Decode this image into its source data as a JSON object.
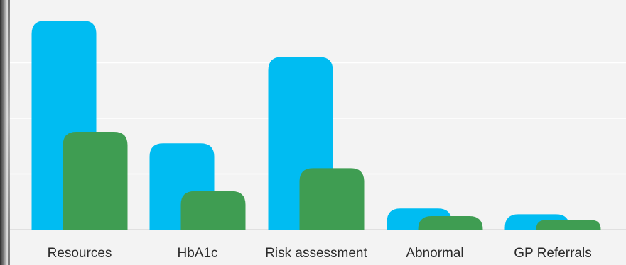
{
  "chart_data": {
    "type": "bar",
    "categories": [
      "Resources",
      "HbA1c",
      "Risk assessment",
      "Abnormal",
      "GP Referrals"
    ],
    "series": [
      {
        "values": [
          10.9,
          4.5,
          9.0,
          1.1,
          0.8
        ]
      },
      {
        "values": [
          5.1,
          2.0,
          3.2,
          0.7,
          0.5
        ]
      }
    ],
    "ylim": [
      0,
      11.6
    ],
    "grid": true,
    "colors": {
      "series_1": "#00BCF2",
      "series_2": "#3F9D52",
      "grid": "#FFFFFF",
      "background": "#F3F3F3",
      "text": "#2B2B2B"
    }
  }
}
